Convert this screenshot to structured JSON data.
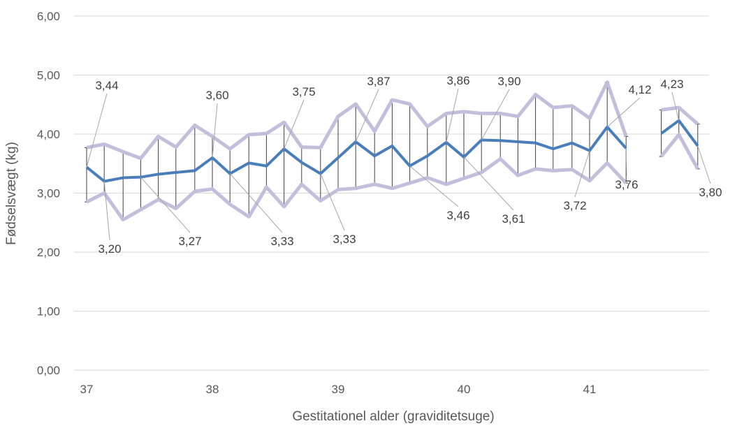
{
  "chart_data": {
    "type": "line",
    "xlabel": "Gestitationel alder (graviditetsuge)",
    "ylabel": "Fødselsvægt (kg)",
    "ylim": [
      0,
      6
    ],
    "yticks": [
      "0,00",
      "1,00",
      "2,00",
      "3,00",
      "4,00",
      "5,00",
      "6,00"
    ],
    "xticks": [
      "37",
      "38",
      "39",
      "40",
      "41"
    ],
    "xlim": [
      36.9,
      41.95
    ],
    "grid": "horizontal",
    "colors": {
      "mean": "#4a7ebb",
      "band": "#c5bddc",
      "whisker": "#404040",
      "grid": "#d9d9d9",
      "leader": "#a6a6a6"
    },
    "series": [
      {
        "role": "mean",
        "x": [
          37.0,
          37.14,
          37.29,
          37.43,
          37.57,
          37.71,
          37.86,
          38.0,
          38.14,
          38.29,
          38.43,
          38.57,
          38.71,
          38.86,
          39.0,
          39.14,
          39.29,
          39.43,
          39.57,
          39.71,
          39.86,
          40.0,
          40.14,
          40.29,
          40.43,
          40.57,
          40.71,
          40.86,
          41.0,
          41.14,
          41.29,
          41.57,
          41.71,
          41.86
        ],
        "values": [
          3.44,
          3.2,
          3.26,
          3.27,
          3.32,
          3.35,
          3.38,
          3.6,
          3.33,
          3.51,
          3.46,
          3.75,
          3.52,
          3.33,
          3.6,
          3.87,
          3.63,
          3.8,
          3.46,
          3.63,
          3.86,
          3.61,
          3.9,
          3.89,
          3.87,
          3.85,
          3.75,
          3.85,
          3.72,
          4.12,
          3.76,
          4.01,
          4.23,
          3.8
        ]
      },
      {
        "role": "upper",
        "x": [
          37.0,
          37.14,
          37.29,
          37.43,
          37.57,
          37.71,
          37.86,
          38.0,
          38.14,
          38.29,
          38.43,
          38.57,
          38.71,
          38.86,
          39.0,
          39.14,
          39.29,
          39.43,
          39.57,
          39.71,
          39.86,
          40.0,
          40.14,
          40.29,
          40.43,
          40.57,
          40.71,
          40.86,
          41.0,
          41.14,
          41.29,
          41.57,
          41.71,
          41.86
        ],
        "values": [
          3.77,
          3.83,
          3.7,
          3.59,
          3.96,
          3.78,
          4.15,
          3.96,
          3.75,
          3.99,
          4.01,
          4.2,
          3.78,
          3.77,
          4.3,
          4.51,
          4.05,
          4.58,
          4.51,
          4.13,
          4.35,
          4.38,
          4.35,
          4.35,
          4.3,
          4.67,
          4.45,
          4.48,
          4.27,
          4.88,
          3.96,
          4.41,
          4.45,
          4.17
        ]
      },
      {
        "role": "lower",
        "x": [
          37.0,
          37.14,
          37.29,
          37.43,
          37.57,
          37.71,
          37.86,
          38.0,
          38.14,
          38.29,
          38.43,
          38.57,
          38.71,
          38.86,
          39.0,
          39.14,
          39.29,
          39.43,
          39.57,
          39.71,
          39.86,
          40.0,
          40.14,
          40.29,
          40.43,
          40.57,
          40.71,
          40.86,
          41.0,
          41.14,
          41.29,
          41.57,
          41.71,
          41.86
        ],
        "values": [
          2.85,
          3.0,
          2.55,
          2.72,
          2.89,
          2.74,
          3.03,
          3.07,
          2.81,
          2.6,
          3.1,
          2.77,
          3.15,
          2.87,
          3.06,
          3.08,
          3.15,
          3.08,
          3.17,
          3.26,
          3.15,
          3.25,
          3.35,
          3.58,
          3.3,
          3.41,
          3.38,
          3.4,
          3.21,
          3.51,
          3.17,
          3.62,
          3.99,
          3.41
        ]
      }
    ],
    "data_labels": [
      {
        "text": "3,44",
        "x": 37.0,
        "y": 3.44
      },
      {
        "text": "3,20",
        "x": 37.14,
        "y": 3.2
      },
      {
        "text": "3,27",
        "x": 37.43,
        "y": 3.27
      },
      {
        "text": "3,60",
        "x": 38.0,
        "y": 3.6
      },
      {
        "text": "3,33",
        "x": 38.14,
        "y": 3.33
      },
      {
        "text": "3,75",
        "x": 38.57,
        "y": 3.75
      },
      {
        "text": "3,33",
        "x": 38.86,
        "y": 3.33
      },
      {
        "text": "3,87",
        "x": 39.14,
        "y": 3.87
      },
      {
        "text": "3,46",
        "x": 39.57,
        "y": 3.46
      },
      {
        "text": "3,86",
        "x": 39.86,
        "y": 3.86
      },
      {
        "text": "3,61",
        "x": 40.0,
        "y": 3.61
      },
      {
        "text": "3,90",
        "x": 40.14,
        "y": 3.9
      },
      {
        "text": "3,72",
        "x": 41.0,
        "y": 3.72
      },
      {
        "text": "4,12",
        "x": 41.14,
        "y": 4.12
      },
      {
        "text": "3,76",
        "x": 41.29,
        "y": 3.76
      },
      {
        "text": "4,23",
        "x": 41.71,
        "y": 4.23
      },
      {
        "text": "3,80",
        "x": 41.86,
        "y": 3.8
      }
    ]
  }
}
